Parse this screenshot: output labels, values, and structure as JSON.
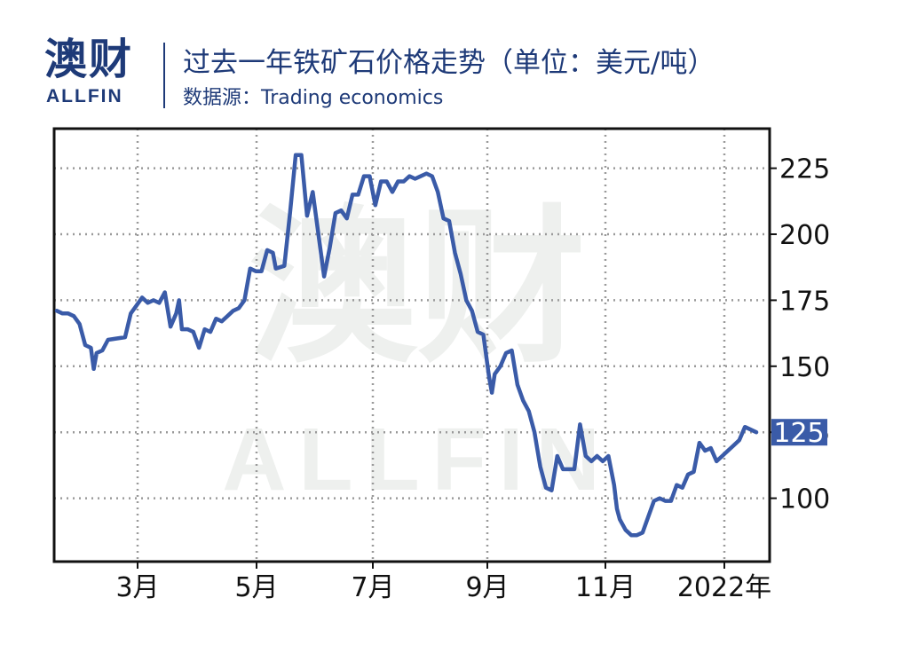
{
  "header": {
    "logo_cn": "澳财",
    "logo_en": "ALLFIN",
    "title": "过去一年铁矿石价格走势（单位：美元/吨）",
    "subtitle": "数据源：Trading economics"
  },
  "watermark": {
    "cn": "澳财",
    "en": "ALLFIN"
  },
  "colors": {
    "line": "#3a5ba8",
    "brand": "#1e3a78",
    "badge": "#3a5ba8",
    "grid": "#9a9a9a"
  },
  "chart_data": {
    "type": "line",
    "title": "过去一年铁矿石价格走势（单位：美元/吨）",
    "xlabel": "",
    "ylabel": "",
    "x_tick_labels": [
      "3月",
      "5月",
      "7月",
      "9月",
      "11月",
      "2022年"
    ],
    "y_ticks": [
      100,
      125,
      150,
      175,
      200,
      225
    ],
    "ylim": [
      76,
      240
    ],
    "grid": true,
    "last_value_label": "125",
    "series": [
      {
        "values": [
          [
            0,
            171
          ],
          [
            1,
            170
          ],
          [
            2,
            170
          ],
          [
            3,
            169
          ],
          [
            4,
            166
          ],
          [
            5,
            158
          ],
          [
            6,
            157
          ],
          [
            6.5,
            149
          ],
          [
            7,
            155
          ],
          [
            8,
            156
          ],
          [
            9,
            160
          ],
          [
            12,
            161
          ],
          [
            13,
            170
          ],
          [
            14,
            173
          ],
          [
            15,
            176
          ],
          [
            16,
            174
          ],
          [
            17,
            175
          ],
          [
            18,
            174
          ],
          [
            19,
            178
          ],
          [
            20,
            165
          ],
          [
            21,
            170
          ],
          [
            21.5,
            175
          ],
          [
            22,
            164
          ],
          [
            23,
            164
          ],
          [
            24,
            163
          ],
          [
            25,
            157
          ],
          [
            26,
            164
          ],
          [
            27,
            163
          ],
          [
            28,
            168
          ],
          [
            29,
            167
          ],
          [
            30,
            169
          ],
          [
            31,
            171
          ],
          [
            32,
            172
          ],
          [
            33,
            175
          ],
          [
            34,
            187
          ],
          [
            35,
            186
          ],
          [
            36,
            186
          ],
          [
            37,
            194
          ],
          [
            38,
            193
          ],
          [
            38.5,
            187
          ],
          [
            40,
            188
          ],
          [
            41,
            208
          ],
          [
            42,
            230
          ],
          [
            43,
            230
          ],
          [
            44,
            207
          ],
          [
            45,
            216
          ],
          [
            46,
            200
          ],
          [
            47,
            184
          ],
          [
            48,
            195
          ],
          [
            49,
            208
          ],
          [
            50,
            209
          ],
          [
            51,
            206
          ],
          [
            52,
            215
          ],
          [
            53,
            215
          ],
          [
            54,
            222
          ],
          [
            55,
            222
          ],
          [
            56,
            211
          ],
          [
            57,
            220
          ],
          [
            58,
            220
          ],
          [
            59,
            216
          ],
          [
            60,
            220
          ],
          [
            61,
            220
          ],
          [
            62,
            222
          ],
          [
            63,
            221
          ],
          [
            64,
            222
          ],
          [
            65,
            223
          ],
          [
            66,
            222
          ],
          [
            67,
            216
          ],
          [
            68,
            206
          ],
          [
            69,
            205
          ],
          [
            70,
            193
          ],
          [
            71,
            185
          ],
          [
            72,
            175
          ],
          [
            73,
            171
          ],
          [
            74,
            163
          ],
          [
            75,
            162
          ],
          [
            76,
            146
          ],
          [
            76.5,
            140
          ],
          [
            77,
            147
          ],
          [
            78,
            150
          ],
          [
            79,
            155
          ],
          [
            80,
            156
          ],
          [
            81,
            143
          ],
          [
            82,
            137
          ],
          [
            83,
            133
          ],
          [
            84,
            125
          ],
          [
            85,
            112
          ],
          [
            86,
            104
          ],
          [
            87,
            103
          ],
          [
            88,
            116
          ],
          [
            89,
            111
          ],
          [
            90,
            111
          ],
          [
            91,
            111
          ],
          [
            92,
            128
          ],
          [
            93,
            116
          ],
          [
            94,
            114
          ],
          [
            95,
            116
          ],
          [
            96,
            114
          ],
          [
            97,
            116
          ],
          [
            98,
            105
          ],
          [
            98.5,
            96
          ],
          [
            99,
            92
          ],
          [
            100,
            88
          ],
          [
            101,
            86
          ],
          [
            102,
            86
          ],
          [
            103,
            87
          ],
          [
            104,
            93
          ],
          [
            105,
            99
          ],
          [
            106,
            100
          ],
          [
            107,
            99
          ],
          [
            108,
            99
          ],
          [
            109,
            105
          ],
          [
            110,
            104
          ],
          [
            111,
            109
          ],
          [
            112,
            110
          ],
          [
            113,
            121
          ],
          [
            114,
            118
          ],
          [
            115,
            119
          ],
          [
            116,
            114
          ],
          [
            117,
            116
          ],
          [
            118,
            118
          ],
          [
            119,
            120
          ],
          [
            120,
            122
          ],
          [
            121,
            127
          ],
          [
            122,
            126
          ],
          [
            123,
            125
          ]
        ]
      }
    ]
  }
}
